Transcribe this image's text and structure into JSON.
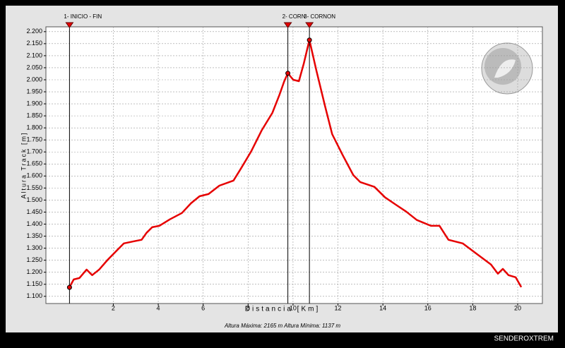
{
  "chart_data": {
    "type": "line",
    "footer": "Altura Máxima: 2165 m   Altura Mínima: 1137 m",
    "x_label": "Distancia [Km]",
    "y_label": "Altura Track [m]",
    "watermark": "SENDEROXTREM",
    "grid": true,
    "xlim": [
      -1,
      21.1
    ],
    "xticks": [
      2,
      4,
      6,
      8,
      10,
      12,
      14,
      16,
      18,
      20
    ],
    "ylim": [
      1070,
      2220
    ],
    "yticks": [
      {
        "value": 1100,
        "label": "1.100"
      },
      {
        "value": 1150,
        "label": "1.150"
      },
      {
        "value": 1200,
        "label": "1.200"
      },
      {
        "value": 1250,
        "label": "1.250"
      },
      {
        "value": 1300,
        "label": "1.300"
      },
      {
        "value": 1350,
        "label": "1.350"
      },
      {
        "value": 1400,
        "label": "1.400"
      },
      {
        "value": 1450,
        "label": "1.450"
      },
      {
        "value": 1500,
        "label": "1.500"
      },
      {
        "value": 1550,
        "label": "1.550"
      },
      {
        "value": 1600,
        "label": "1.600"
      },
      {
        "value": 1650,
        "label": "1.650"
      },
      {
        "value": 1700,
        "label": "1.700"
      },
      {
        "value": 1750,
        "label": "1.750"
      },
      {
        "value": 1800,
        "label": "1.800"
      },
      {
        "value": 1850,
        "label": "1.850"
      },
      {
        "value": 1900,
        "label": "1.900"
      },
      {
        "value": 1950,
        "label": "1.950"
      },
      {
        "value": 2000,
        "label": "2.000"
      },
      {
        "value": 2050,
        "label": "2.050"
      },
      {
        "value": 2100,
        "label": "2.100"
      },
      {
        "value": 2150,
        "label": "2.150"
      },
      {
        "value": 2200,
        "label": "2.200"
      }
    ],
    "waypoints": [
      {
        "label": "1- INICIO - FIN",
        "x": 0.05,
        "y": 1137
      },
      {
        "label": "2- CORN",
        "x": 9.77,
        "y": 2027
      },
      {
        "label": "3- CORNON",
        "x": 10.73,
        "y": 2165
      }
    ],
    "series": [
      {
        "name": "Altura Track",
        "color": "#e60000",
        "x": [
          0.05,
          0.24,
          0.49,
          0.81,
          1.06,
          1.37,
          1.75,
          2.16,
          2.47,
          2.94,
          3.26,
          3.48,
          3.73,
          4.05,
          4.52,
          5.05,
          5.46,
          5.84,
          6.24,
          6.72,
          7.35,
          7.66,
          8.13,
          8.6,
          9.08,
          9.39,
          9.61,
          9.77,
          10.01,
          10.26,
          10.48,
          10.73,
          11.04,
          11.42,
          11.74,
          12.21,
          12.68,
          12.99,
          13.62,
          14.1,
          14.57,
          15.04,
          15.51,
          16.14,
          16.52,
          16.92,
          17.55,
          18.18,
          18.81,
          19.12,
          19.34,
          19.59,
          19.91,
          20.16
        ],
        "values": [
          1138,
          1170,
          1176,
          1211,
          1188,
          1211,
          1252,
          1291,
          1320,
          1329,
          1335,
          1364,
          1387,
          1393,
          1420,
          1446,
          1487,
          1516,
          1525,
          1560,
          1581,
          1628,
          1701,
          1789,
          1862,
          1936,
          1994,
          2027,
          2000,
          1994,
          2068,
          2165,
          2038,
          1892,
          1774,
          1687,
          1604,
          1575,
          1555,
          1511,
          1481,
          1452,
          1417,
          1393,
          1393,
          1335,
          1320,
          1276,
          1232,
          1194,
          1214,
          1188,
          1179,
          1138
        ]
      }
    ]
  }
}
